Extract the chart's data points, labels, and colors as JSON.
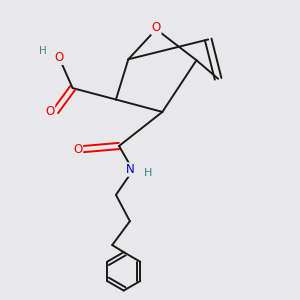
{
  "background_color": "#e8e8eb",
  "bond_color": "#1a1a1a",
  "atom_colors": {
    "O": "#ee0000",
    "N": "#0000cc",
    "H": "#3a8888",
    "C": "#1a1a1a"
  },
  "lw": 1.4
}
